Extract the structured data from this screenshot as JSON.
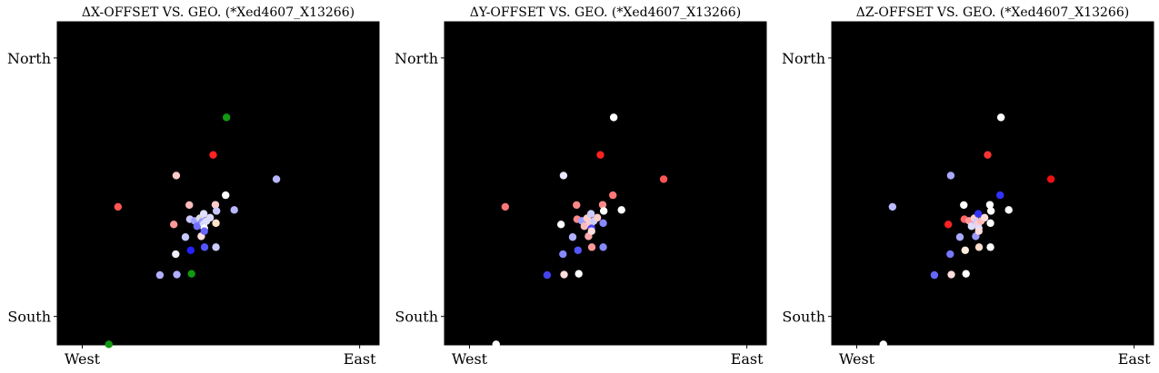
{
  "figure": {
    "charts": [
      {
        "id": "dx",
        "title": "ΔX-OFFSET VS. GEO. (*Xed4607_X13266)"
      },
      {
        "id": "dy",
        "title": "ΔY-OFFSET VS. GEO. (*Xed4607_X13266)"
      },
      {
        "id": "dz",
        "title": "ΔZ-OFFSET VS. GEO. (*Xed4607_X13266)"
      }
    ]
  },
  "chart_data": [
    {
      "type": "scatter",
      "title": "ΔX-OFFSET VS. GEO. (*Xed4607_X13266)",
      "xlabel": "",
      "ylabel": "",
      "xlim": [
        -0.09,
        1.07
      ],
      "ylim": [
        -0.11,
        1.14
      ],
      "x_ticks": [
        {
          "value": 0,
          "label": "West"
        },
        {
          "value": 1,
          "label": "East"
        }
      ],
      "y_ticks": [
        {
          "value": 0,
          "label": "South"
        },
        {
          "value": 1,
          "label": "North"
        }
      ],
      "background": "#000000",
      "grid": false,
      "points": [
        {
          "x": 0.096,
          "y": -0.108,
          "color": "#119911"
        },
        {
          "x": 0.129,
          "y": 0.424,
          "color": "#ff5555"
        },
        {
          "x": 0.28,
          "y": 0.16,
          "color": "#b0b0ff"
        },
        {
          "x": 0.33,
          "y": 0.356,
          "color": "#ff9999"
        },
        {
          "x": 0.337,
          "y": 0.241,
          "color": "#f0f0ff"
        },
        {
          "x": 0.339,
          "y": 0.545,
          "color": "#ffcccc"
        },
        {
          "x": 0.341,
          "y": 0.162,
          "color": "#b0b0ff"
        },
        {
          "x": 0.372,
          "y": 0.307,
          "color": "#c8c8ff"
        },
        {
          "x": 0.386,
          "y": 0.431,
          "color": "#ffbbbb"
        },
        {
          "x": 0.388,
          "y": 0.376,
          "color": "#c8c8ff"
        },
        {
          "x": 0.391,
          "y": 0.256,
          "color": "#2222ff"
        },
        {
          "x": 0.394,
          "y": 0.165,
          "color": "#119911"
        },
        {
          "x": 0.405,
          "y": 0.37,
          "color": "#a0a0ff"
        },
        {
          "x": 0.414,
          "y": 0.349,
          "color": "#7070ff"
        },
        {
          "x": 0.424,
          "y": 0.38,
          "color": "#dddddd"
        },
        {
          "x": 0.429,
          "y": 0.31,
          "color": "#ffdddd"
        },
        {
          "x": 0.432,
          "y": 0.366,
          "color": "#9999ff"
        },
        {
          "x": 0.438,
          "y": 0.397,
          "color": "#e0e0ff"
        },
        {
          "x": 0.438,
          "y": 0.358,
          "color": "#d8d8ff"
        },
        {
          "x": 0.44,
          "y": 0.341,
          "color": "#ffffff"
        },
        {
          "x": 0.44,
          "y": 0.33,
          "color": "#6666ff"
        },
        {
          "x": 0.441,
          "y": 0.268,
          "color": "#5555ff"
        },
        {
          "x": 0.448,
          "y": 0.369,
          "color": "#ddddff"
        },
        {
          "x": 0.461,
          "y": 0.382,
          "color": "#ddddff"
        },
        {
          "x": 0.472,
          "y": 0.625,
          "color": "#ff2222"
        },
        {
          "x": 0.48,
          "y": 0.432,
          "color": "#ffcccc"
        },
        {
          "x": 0.482,
          "y": 0.361,
          "color": "#ffe4cc"
        },
        {
          "x": 0.482,
          "y": 0.268,
          "color": "#ccccff"
        },
        {
          "x": 0.484,
          "y": 0.408,
          "color": "#c8c8ff"
        },
        {
          "x": 0.517,
          "y": 0.469,
          "color": "#ffffff"
        },
        {
          "x": 0.52,
          "y": 0.77,
          "color": "#119911"
        },
        {
          "x": 0.548,
          "y": 0.412,
          "color": "#b8b8ff"
        },
        {
          "x": 0.7,
          "y": 0.531,
          "color": "#b8b8ff"
        }
      ]
    },
    {
      "type": "scatter",
      "title": "ΔY-OFFSET VS. GEO. (*Xed4607_X13266)",
      "xlabel": "",
      "ylabel": "",
      "xlim": [
        -0.09,
        1.07
      ],
      "ylim": [
        -0.11,
        1.14
      ],
      "x_ticks": [
        {
          "value": 0,
          "label": "West"
        },
        {
          "value": 1,
          "label": "East"
        }
      ],
      "y_ticks": [
        {
          "value": 0,
          "label": "South"
        },
        {
          "value": 1,
          "label": "North"
        }
      ],
      "background": "#000000",
      "grid": false,
      "points": [
        {
          "x": 0.096,
          "y": -0.108,
          "color": "#ffffff"
        },
        {
          "x": 0.129,
          "y": 0.424,
          "color": "#ff7777"
        },
        {
          "x": 0.28,
          "y": 0.16,
          "color": "#4444ee"
        },
        {
          "x": 0.33,
          "y": 0.356,
          "color": "#ffffff"
        },
        {
          "x": 0.337,
          "y": 0.241,
          "color": "#8888ff"
        },
        {
          "x": 0.339,
          "y": 0.545,
          "color": "#e8e8ff"
        },
        {
          "x": 0.341,
          "y": 0.162,
          "color": "#ffdddd"
        },
        {
          "x": 0.372,
          "y": 0.307,
          "color": "#b0b0ff"
        },
        {
          "x": 0.386,
          "y": 0.431,
          "color": "#ff8888"
        },
        {
          "x": 0.388,
          "y": 0.376,
          "color": "#ff8888"
        },
        {
          "x": 0.391,
          "y": 0.256,
          "color": "#5555ff"
        },
        {
          "x": 0.394,
          "y": 0.165,
          "color": "#ffffff"
        },
        {
          "x": 0.405,
          "y": 0.37,
          "color": "#a0a0ff"
        },
        {
          "x": 0.414,
          "y": 0.349,
          "color": "#ffbbbb"
        },
        {
          "x": 0.424,
          "y": 0.38,
          "color": "#ffcccc"
        },
        {
          "x": 0.429,
          "y": 0.31,
          "color": "#ffaaaa"
        },
        {
          "x": 0.432,
          "y": 0.366,
          "color": "#ffcccc"
        },
        {
          "x": 0.438,
          "y": 0.397,
          "color": "#ccccff"
        },
        {
          "x": 0.438,
          "y": 0.358,
          "color": "#ffcccc"
        },
        {
          "x": 0.44,
          "y": 0.341,
          "color": "#4444ff"
        },
        {
          "x": 0.44,
          "y": 0.33,
          "color": "#ffdddd"
        },
        {
          "x": 0.441,
          "y": 0.268,
          "color": "#ff9999"
        },
        {
          "x": 0.448,
          "y": 0.369,
          "color": "#ccccff"
        },
        {
          "x": 0.461,
          "y": 0.382,
          "color": "#ffcccc"
        },
        {
          "x": 0.472,
          "y": 0.625,
          "color": "#ff2222"
        },
        {
          "x": 0.48,
          "y": 0.432,
          "color": "#ff8888"
        },
        {
          "x": 0.482,
          "y": 0.361,
          "color": "#8888ff"
        },
        {
          "x": 0.482,
          "y": 0.268,
          "color": "#8888ff"
        },
        {
          "x": 0.484,
          "y": 0.408,
          "color": "#ffffff"
        },
        {
          "x": 0.517,
          "y": 0.469,
          "color": "#ff7777"
        },
        {
          "x": 0.52,
          "y": 0.77,
          "color": "#ffffff"
        },
        {
          "x": 0.548,
          "y": 0.412,
          "color": "#ffffff"
        },
        {
          "x": 0.7,
          "y": 0.531,
          "color": "#ff5555"
        }
      ]
    },
    {
      "type": "scatter",
      "title": "ΔZ-OFFSET VS. GEO. (*Xed4607_X13266)",
      "xlabel": "",
      "ylabel": "",
      "xlim": [
        -0.09,
        1.07
      ],
      "ylim": [
        -0.11,
        1.14
      ],
      "x_ticks": [
        {
          "value": 0,
          "label": "West"
        },
        {
          "value": 1,
          "label": "East"
        }
      ],
      "y_ticks": [
        {
          "value": 0,
          "label": "South"
        },
        {
          "value": 1,
          "label": "North"
        }
      ],
      "background": "#000000",
      "grid": false,
      "points": [
        {
          "x": 0.096,
          "y": -0.108,
          "color": "#ffffff"
        },
        {
          "x": 0.129,
          "y": 0.424,
          "color": "#bbbbff"
        },
        {
          "x": 0.28,
          "y": 0.16,
          "color": "#6666ff"
        },
        {
          "x": 0.33,
          "y": 0.356,
          "color": "#ff2222"
        },
        {
          "x": 0.337,
          "y": 0.241,
          "color": "#7777ff"
        },
        {
          "x": 0.339,
          "y": 0.545,
          "color": "#aaaaff"
        },
        {
          "x": 0.341,
          "y": 0.162,
          "color": "#ffdddd"
        },
        {
          "x": 0.372,
          "y": 0.307,
          "color": "#aaaaff"
        },
        {
          "x": 0.386,
          "y": 0.431,
          "color": "#ffffff"
        },
        {
          "x": 0.388,
          "y": 0.376,
          "color": "#ff6666"
        },
        {
          "x": 0.391,
          "y": 0.256,
          "color": "#ffeedd"
        },
        {
          "x": 0.394,
          "y": 0.165,
          "color": "#ffffff"
        },
        {
          "x": 0.405,
          "y": 0.37,
          "color": "#ff9999"
        },
        {
          "x": 0.414,
          "y": 0.349,
          "color": "#ddddff"
        },
        {
          "x": 0.424,
          "y": 0.38,
          "color": "#ffcccc"
        },
        {
          "x": 0.429,
          "y": 0.31,
          "color": "#9999ff"
        },
        {
          "x": 0.432,
          "y": 0.366,
          "color": "#ccccff"
        },
        {
          "x": 0.438,
          "y": 0.397,
          "color": "#3333ff"
        },
        {
          "x": 0.438,
          "y": 0.358,
          "color": "#ffcccc"
        },
        {
          "x": 0.44,
          "y": 0.341,
          "color": "#ddddff"
        },
        {
          "x": 0.44,
          "y": 0.33,
          "color": "#ffdddd"
        },
        {
          "x": 0.441,
          "y": 0.268,
          "color": "#ffddcc"
        },
        {
          "x": 0.448,
          "y": 0.369,
          "color": "#ffbbbb"
        },
        {
          "x": 0.461,
          "y": 0.382,
          "color": "#ffdddd"
        },
        {
          "x": 0.472,
          "y": 0.625,
          "color": "#ff3333"
        },
        {
          "x": 0.48,
          "y": 0.432,
          "color": "#ffffff"
        },
        {
          "x": 0.482,
          "y": 0.361,
          "color": "#ffffff"
        },
        {
          "x": 0.482,
          "y": 0.268,
          "color": "#ffffff"
        },
        {
          "x": 0.484,
          "y": 0.408,
          "color": "#ffffff"
        },
        {
          "x": 0.517,
          "y": 0.469,
          "color": "#3333ff"
        },
        {
          "x": 0.52,
          "y": 0.77,
          "color": "#ffffff"
        },
        {
          "x": 0.548,
          "y": 0.412,
          "color": "#ffffff"
        },
        {
          "x": 0.7,
          "y": 0.531,
          "color": "#ee1111"
        }
      ]
    }
  ]
}
